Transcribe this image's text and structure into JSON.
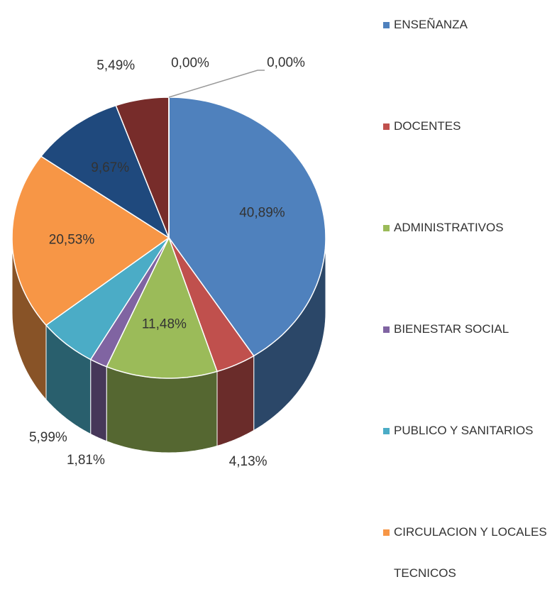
{
  "chart_data": {
    "type": "pie3d",
    "categories": [
      "ENSEÑANZA",
      "DOCENTES",
      "ADMINISTRATIVOS",
      "BIENESTAR SOCIAL",
      "PUBLICO Y SANITARIOS",
      "CIRCULACION Y LOCALES TECNICOS",
      null,
      null,
      null,
      null
    ],
    "values": [
      40.89,
      4.13,
      11.48,
      1.81,
      5.99,
      20.53,
      9.67,
      5.49,
      0,
      0
    ],
    "value_labels": [
      "40,89%",
      "4,13%",
      "11,48%",
      "1,81%",
      "5,99%",
      "20,53%",
      "9,67%",
      "5,49%",
      "0,00%",
      "0,00%"
    ],
    "colors": [
      "#4f81bd",
      "#c0504d",
      "#9bbb59",
      "#8064a2",
      "#4bacc6",
      "#f79646",
      "#1f497d",
      "#772c2a",
      "#77933c",
      "#4f6228"
    ],
    "legend": "right"
  }
}
